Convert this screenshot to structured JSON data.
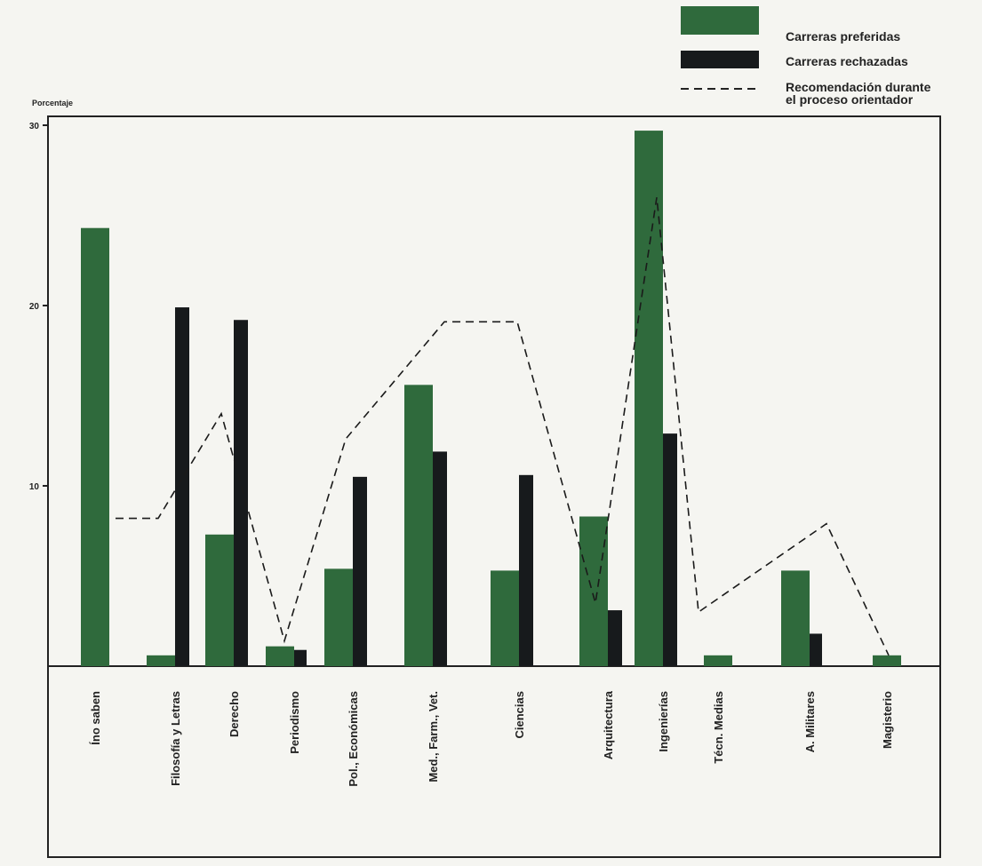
{
  "chart_data": {
    "type": "bar",
    "ylabel": "Porcentaje",
    "ylim": [
      0,
      30
    ],
    "yticks": [
      10,
      20,
      30
    ],
    "categories": [
      "Íno saben",
      "Filosofía y Letras",
      "Derecho",
      "Periodismo",
      "Pol., Económicas",
      "Med., Farm., Vet.",
      "Ciencias",
      "Arquitectura",
      "Ingenierías",
      "Técn. Medias",
      "A. Militares",
      "Magisterio"
    ],
    "series": [
      {
        "name": "Carreras preferidas",
        "kind": "bar",
        "color": "#2f6a3c",
        "values": [
          24.3,
          0.6,
          7.3,
          1.1,
          5.4,
          15.6,
          5.3,
          8.3,
          29.7,
          0.6,
          5.3,
          0.6
        ]
      },
      {
        "name": "Carreras rechazadas",
        "kind": "bar",
        "color": "#171a1c",
        "values": [
          null,
          19.9,
          19.2,
          0.9,
          10.5,
          11.9,
          10.6,
          3.1,
          12.9,
          null,
          1.8,
          null
        ]
      },
      {
        "name": "Recomendación durante el proceso orientador",
        "name_lines": [
          "Recomendación durante",
          "el proceso orientador"
        ],
        "kind": "dashed-line",
        "color": "#1a1a1a",
        "values": [
          8.2,
          8.2,
          14.0,
          1.4,
          12.6,
          19.1,
          19.1,
          3.5,
          26.0,
          3.0,
          7.9,
          0.6
        ]
      }
    ],
    "grid": false,
    "legend_position": "top-right"
  }
}
